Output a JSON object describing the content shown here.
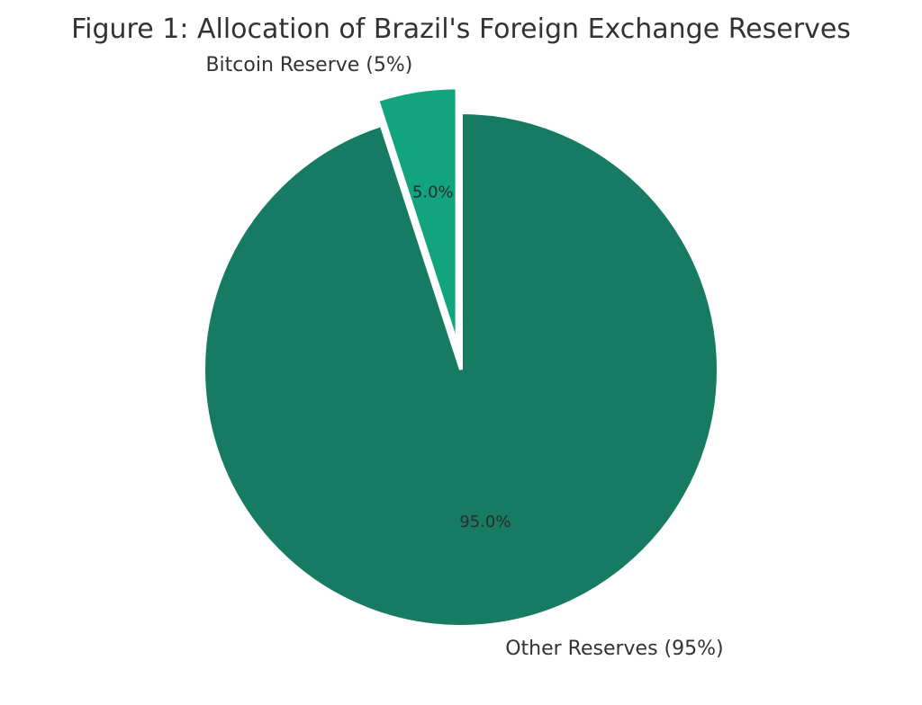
{
  "chart_data": {
    "type": "pie",
    "title": "Figure 1: Allocation of Brazil's Foreign Exchange Reserves",
    "slices": [
      {
        "label": "Bitcoin Reserve (5%)",
        "value": 5.0,
        "pct_label": "5.0%",
        "color": "#12a37f",
        "exploded": true
      },
      {
        "label": "Other Reserves (95%)",
        "value": 95.0,
        "pct_label": "95.0%",
        "color": "#177a62",
        "exploded": false
      }
    ],
    "start_angle_deg": 90,
    "direction": "counterclockwise",
    "legend": "none"
  }
}
